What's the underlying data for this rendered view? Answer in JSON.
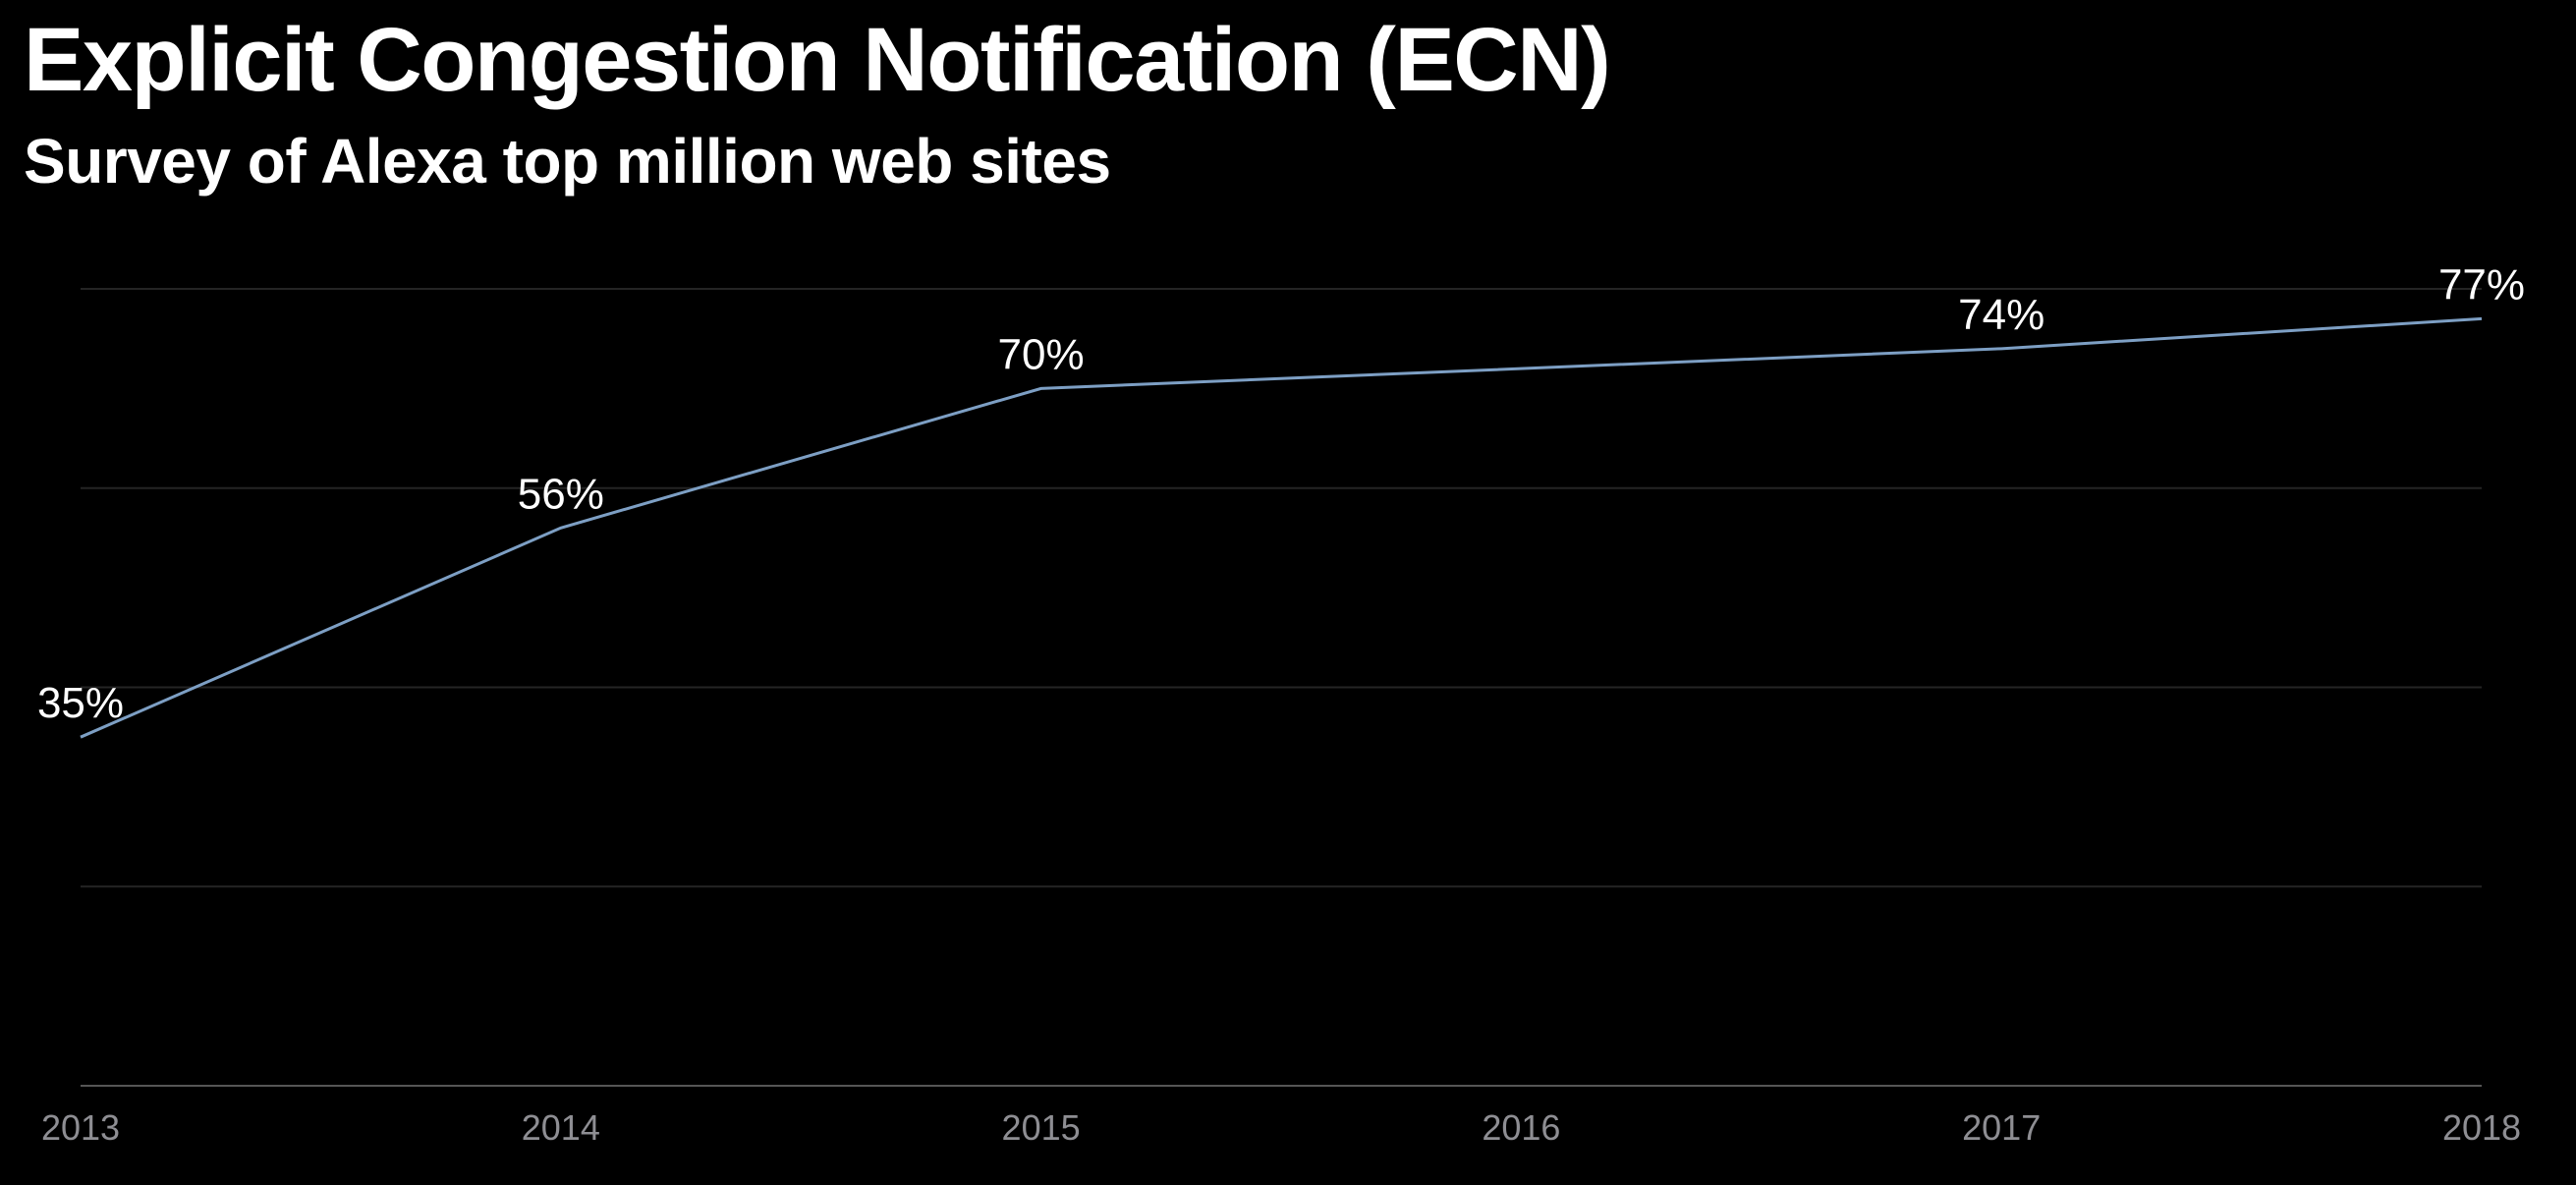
{
  "chart_data": {
    "type": "line",
    "title": "Explicit Congestion Notification (ECN)",
    "subtitle": "Survey of Alexa top million web sites",
    "x": [
      "2013",
      "2014",
      "2015",
      "2016",
      "2017",
      "2018"
    ],
    "series": [
      {
        "points": [
          {
            "x": "2013",
            "y": 35,
            "label": "35%"
          },
          {
            "x": "2014",
            "y": 56,
            "label": "56%"
          },
          {
            "x": "2015",
            "y": 70,
            "label": "70%"
          },
          {
            "x": "2017",
            "y": 74,
            "label": "74%"
          },
          {
            "x": "2018",
            "y": 77,
            "label": "77%"
          }
        ],
        "color": "#7d9fc4"
      }
    ],
    "ylim": [
      0,
      80
    ],
    "y_gridlines": [
      20,
      40,
      60,
      80
    ],
    "grid": true,
    "y_tick_labels_shown": false,
    "xlabel": "",
    "ylabel": "",
    "colors": {
      "background": "#000000",
      "text": "#ffffff",
      "tick_text": "#8e8e93",
      "grid": "#242424",
      "baseline": "#555555"
    }
  }
}
